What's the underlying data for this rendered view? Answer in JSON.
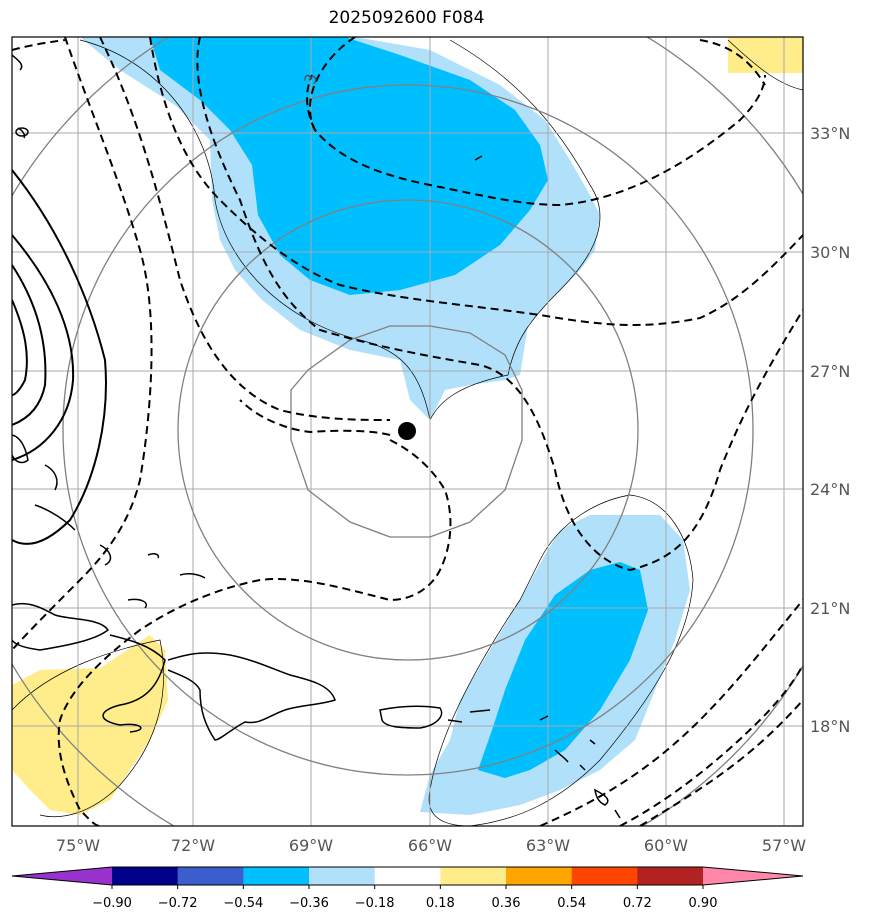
{
  "title": "2025092600 F084",
  "lat_labels": [
    "33°N",
    "30°N",
    "27°N",
    "24°N",
    "21°N",
    "18°N"
  ],
  "lon_labels": [
    "75°W",
    "72°W",
    "69°W",
    "66°W",
    "63°W",
    "60°W",
    "57°W"
  ],
  "contour_label": "3",
  "colorbar": {
    "ticks": [
      "−0.90",
      "−0.72",
      "−0.54",
      "−0.36",
      "−0.18",
      "0.18",
      "0.36",
      "0.54",
      "0.72",
      "0.90"
    ],
    "colors": [
      "#9932cc",
      "#00008b",
      "#3a5fcd",
      "#00bfff",
      "#b0e0fa",
      "#ffffff",
      "#ffec8b",
      "#ffa500",
      "#ff4500",
      "#b22222",
      "#ff88aa"
    ]
  }
}
